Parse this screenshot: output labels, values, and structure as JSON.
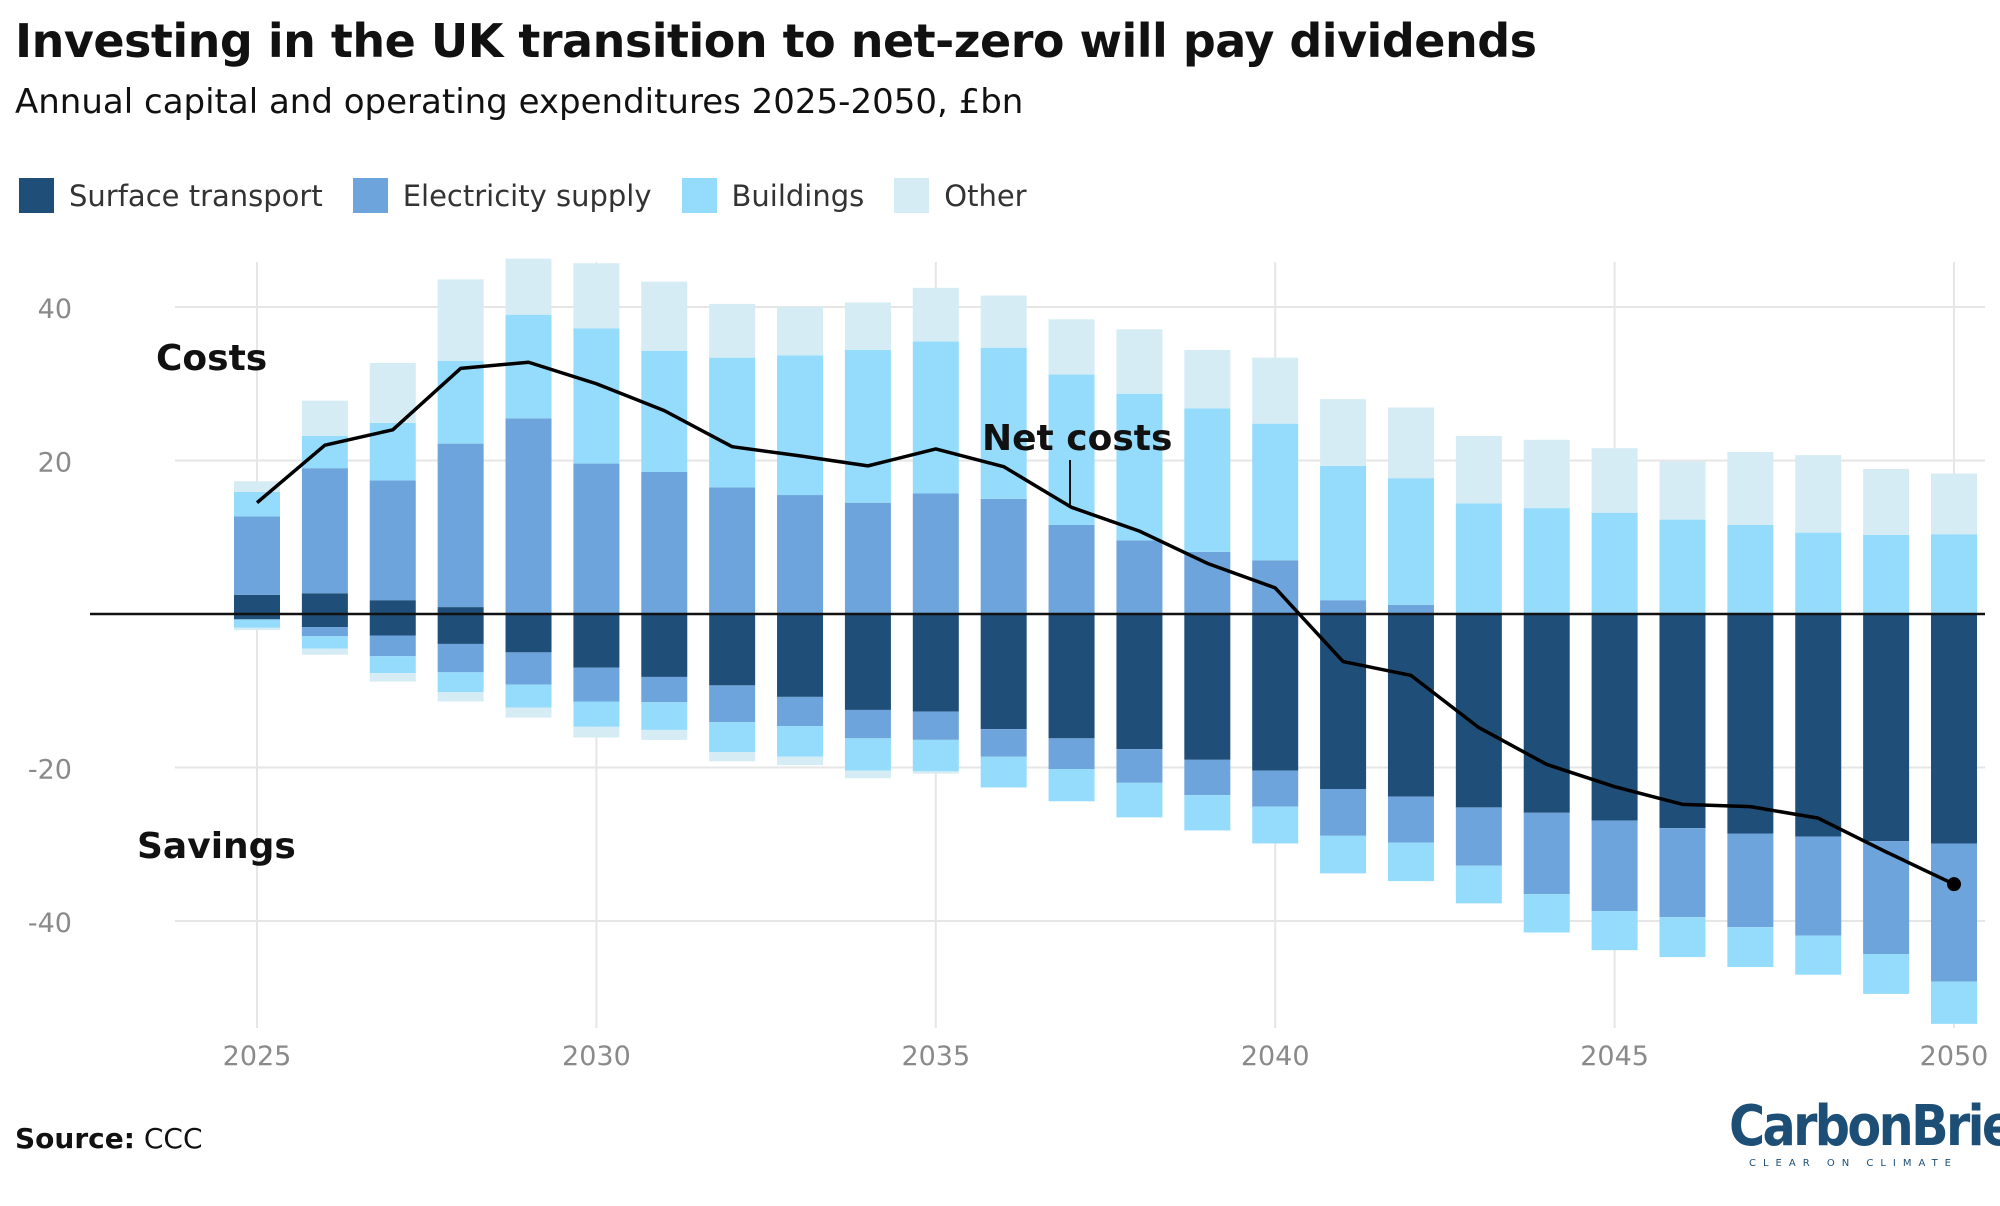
{
  "header": {
    "title": "Investing in the UK transition to net-zero will pay dividends",
    "subtitle": "Annual capital and operating expenditures 2025-2050, £bn"
  },
  "legend": [
    {
      "label": "Surface transport",
      "color": "#1f4e78"
    },
    {
      "label": "Electricity supply",
      "color": "#6da4db"
    },
    {
      "label": "Buildings",
      "color": "#95dcfc"
    },
    {
      "label": "Other",
      "color": "#d5ecf4"
    }
  ],
  "footer": {
    "source_label": "Source:",
    "source_value": "CCC",
    "logo_text": "CarbonBrief",
    "logo_tagline": "CLEAR ON CLIMATE"
  },
  "chart_data": {
    "type": "bar",
    "stacked": true,
    "x": [
      2025,
      2026,
      2027,
      2028,
      2029,
      2030,
      2031,
      2032,
      2033,
      2034,
      2035,
      2036,
      2037,
      2038,
      2039,
      2040,
      2041,
      2042,
      2043,
      2044,
      2045,
      2046,
      2047,
      2048,
      2049,
      2050
    ],
    "xticks": [
      2025,
      2030,
      2035,
      2040,
      2045,
      2050
    ],
    "yticks": [
      -40,
      -20,
      20,
      40
    ],
    "ylim": [
      -53,
      46
    ],
    "grid": true,
    "annotations": {
      "costs": "Costs",
      "savings": "Savings",
      "net": "Net costs"
    },
    "series_costs": [
      {
        "name": "Surface transport",
        "color": "#1f4e78",
        "values": [
          2.5,
          2.7,
          1.8,
          0.9,
          0,
          0,
          0,
          0,
          0,
          0,
          0,
          0,
          0,
          0,
          0,
          0,
          0,
          0,
          0,
          0,
          0,
          0,
          0,
          0,
          0,
          0
        ]
      },
      {
        "name": "Electricity supply",
        "color": "#6da4db",
        "values": [
          10.2,
          16.3,
          15.6,
          21.3,
          25.5,
          19.6,
          18.5,
          16.5,
          15.5,
          14.5,
          15.7,
          15.0,
          11.6,
          9.6,
          8.1,
          7.0,
          1.8,
          1.2,
          0,
          0,
          0,
          0,
          0,
          0,
          0,
          0
        ]
      },
      {
        "name": "Buildings",
        "color": "#95dcfc",
        "values": [
          3.2,
          4.2,
          7.5,
          10.8,
          13.5,
          17.6,
          15.8,
          16.9,
          18.2,
          19.9,
          19.8,
          19.7,
          19.6,
          19.1,
          18.7,
          17.8,
          17.5,
          16.5,
          14.4,
          13.8,
          13.2,
          12.3,
          11.6,
          10.6,
          10.3,
          10.4
        ]
      },
      {
        "name": "Other",
        "color": "#d5ecf4",
        "values": [
          1.4,
          4.6,
          7.8,
          10.6,
          7.3,
          8.5,
          9.0,
          7.0,
          6.3,
          6.2,
          7.0,
          6.8,
          7.2,
          8.4,
          7.6,
          8.6,
          8.7,
          9.2,
          8.8,
          8.9,
          8.4,
          7.6,
          9.5,
          10.1,
          8.6,
          7.9
        ]
      }
    ],
    "series_savings": [
      {
        "name": "Surface transport",
        "color": "#1f4e78",
        "values": [
          -0.7,
          -1.7,
          -2.8,
          -3.9,
          -5.0,
          -7.0,
          -8.2,
          -9.3,
          -10.8,
          -12.5,
          -12.7,
          -15.0,
          -16.2,
          -17.6,
          -19.0,
          -20.4,
          -22.8,
          -23.8,
          -25.2,
          -25.9,
          -26.9,
          -27.9,
          -28.6,
          -29.0,
          -29.6,
          -29.9
        ]
      },
      {
        "name": "Electricity supply",
        "color": "#6da4db",
        "values": [
          0,
          -1.2,
          -2.7,
          -3.7,
          -4.2,
          -4.4,
          -3.3,
          -4.8,
          -3.8,
          -3.7,
          -3.7,
          -3.6,
          -4.0,
          -4.4,
          -4.6,
          -4.7,
          -6.1,
          -6.0,
          -7.6,
          -10.6,
          -11.8,
          -11.6,
          -12.2,
          -12.9,
          -14.7,
          -18.0
        ]
      },
      {
        "name": "Buildings",
        "color": "#95dcfc",
        "values": [
          -1.1,
          -1.6,
          -2.2,
          -2.6,
          -3.0,
          -3.3,
          -3.6,
          -3.9,
          -4.0,
          -4.2,
          -4.1,
          -4.0,
          -4.2,
          -4.5,
          -4.6,
          -4.8,
          -4.9,
          -5.0,
          -4.9,
          -5.0,
          -5.1,
          -5.2,
          -5.2,
          -5.1,
          -5.2,
          -5.5
        ]
      },
      {
        "name": "Other",
        "color": "#d5ecf4",
        "values": [
          -0.3,
          -0.8,
          -1.1,
          -1.2,
          -1.3,
          -1.4,
          -1.3,
          -1.2,
          -1.1,
          -1.0,
          -0.3,
          0,
          0,
          0,
          0,
          0,
          0,
          0,
          0,
          0,
          0,
          0,
          0,
          0,
          0,
          0
        ]
      }
    ],
    "net_costs": [
      14.5,
      22.0,
      24.0,
      32.0,
      32.8,
      30.0,
      26.5,
      21.8,
      20.6,
      19.3,
      21.5,
      19.2,
      13.9,
      10.8,
      6.6,
      3.4,
      -6.2,
      -8.0,
      -14.8,
      -19.6,
      -22.5,
      -24.8,
      -25.1,
      -26.6,
      -31.0,
      -35.2
    ]
  }
}
